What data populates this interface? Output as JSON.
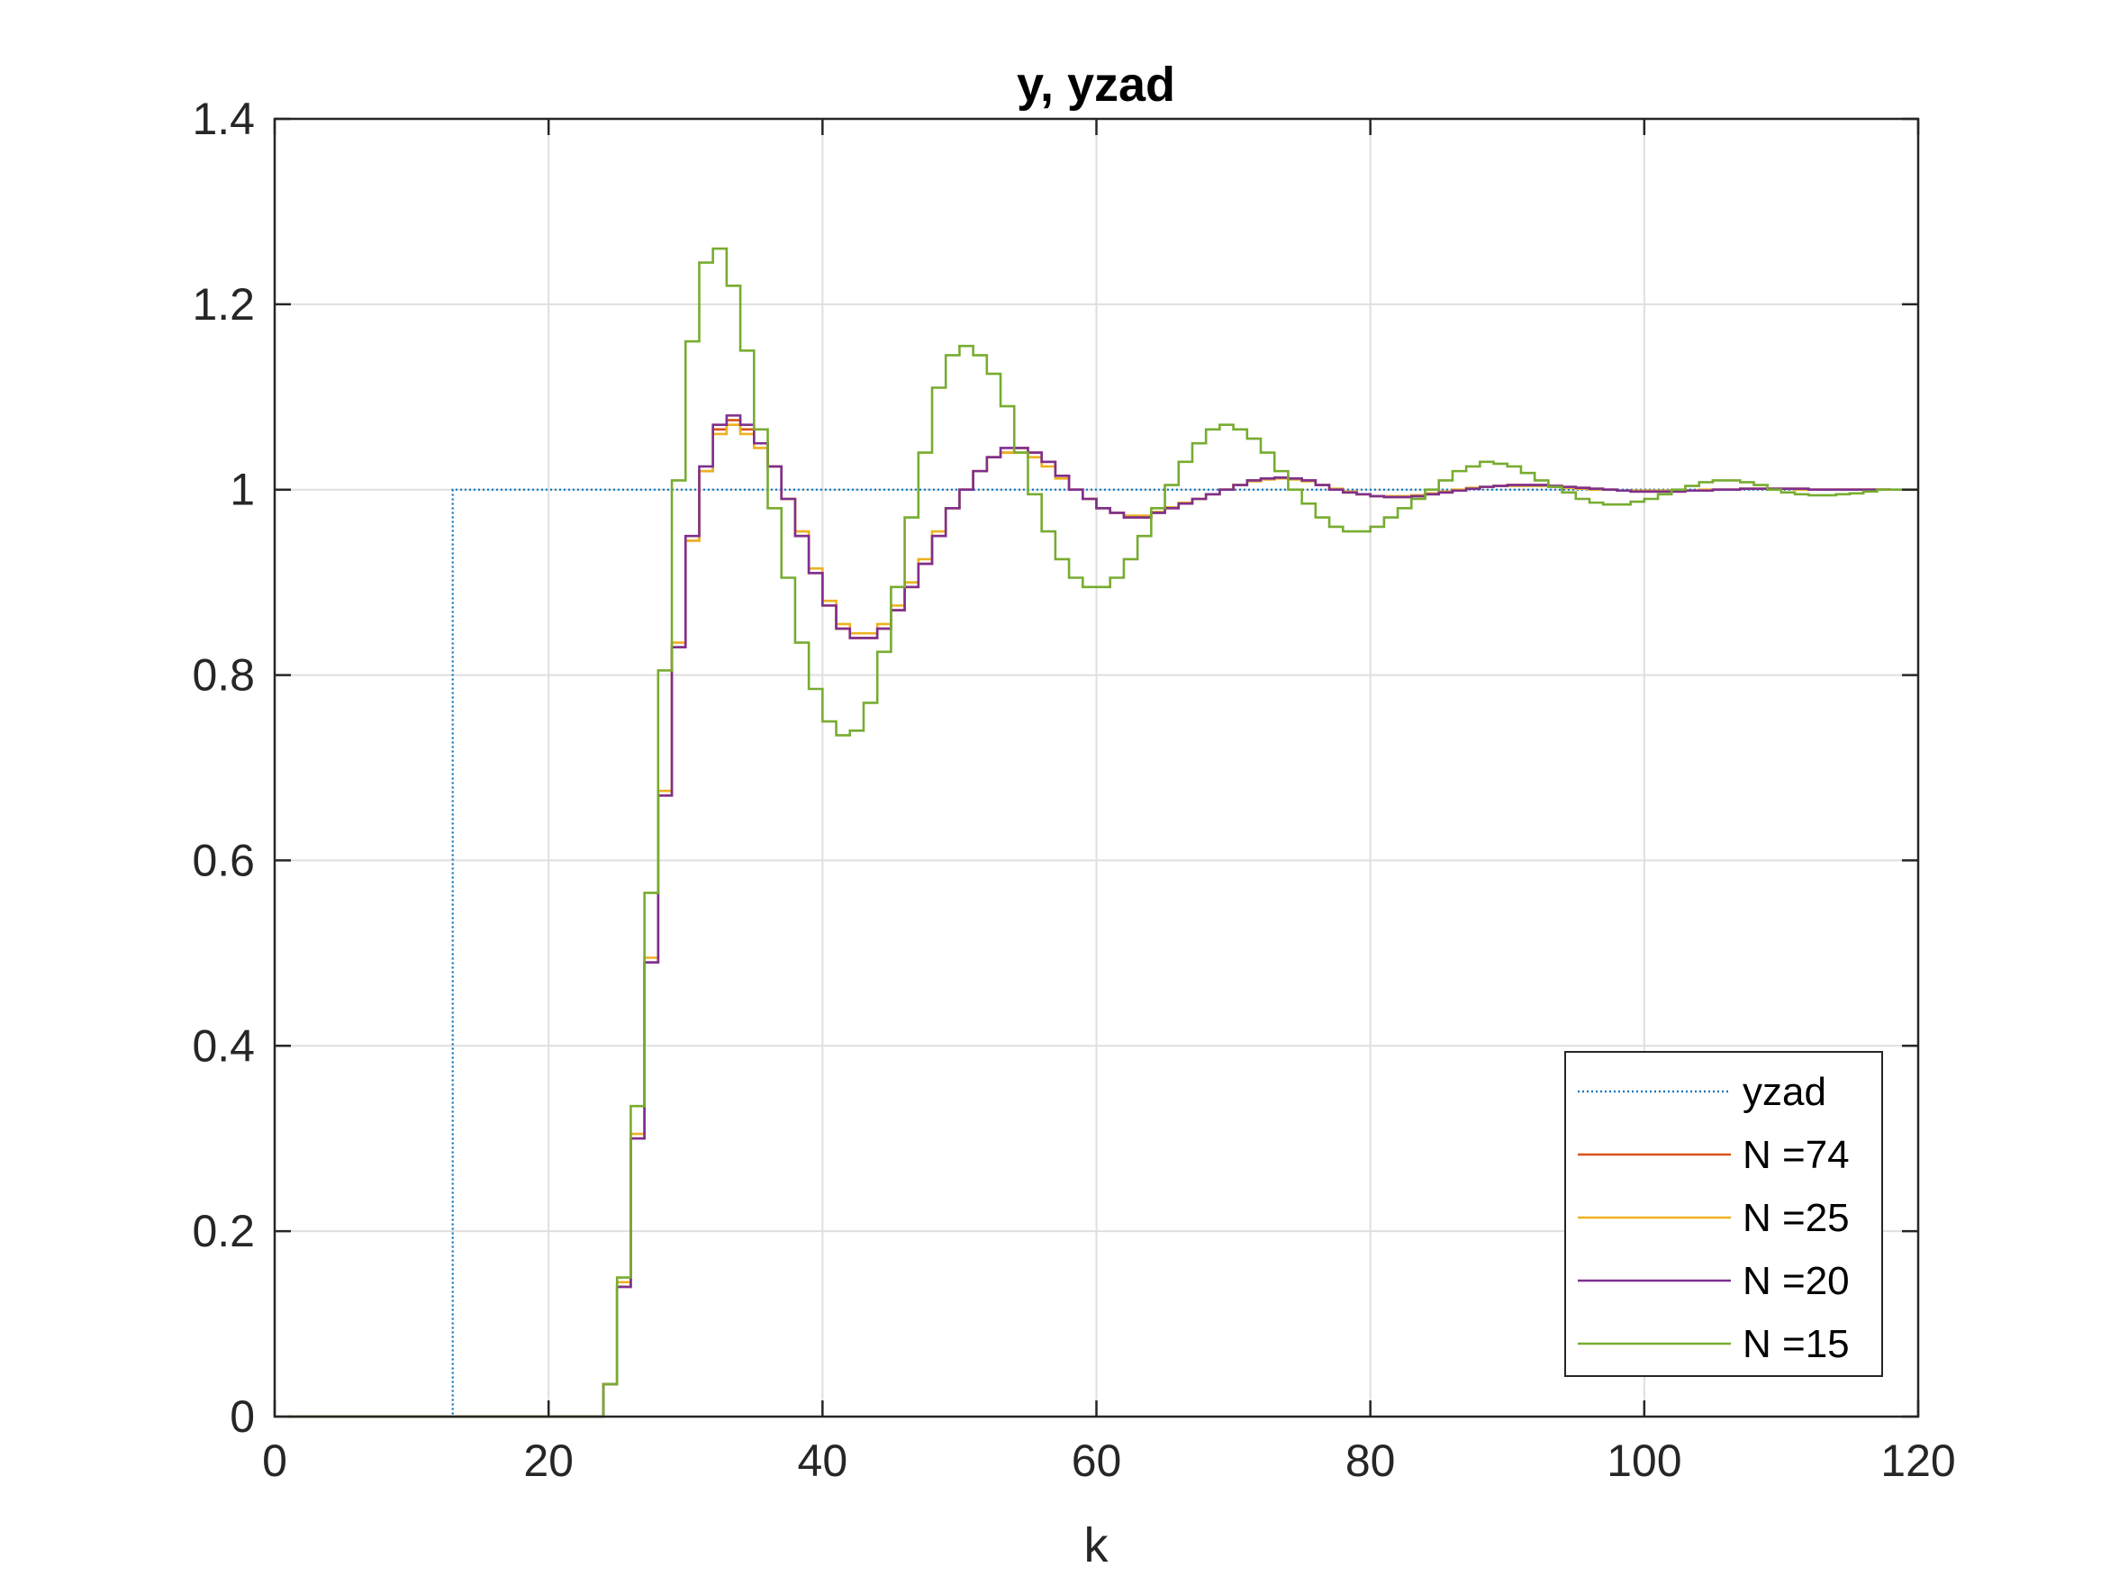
{
  "chart_data": {
    "type": "line",
    "title": "y, yzad",
    "xlabel": "k",
    "ylabel": "",
    "xlim": [
      0,
      120
    ],
    "ylim": [
      0,
      1.4
    ],
    "xticks": [
      "0",
      "20",
      "40",
      "60",
      "80",
      "100",
      "120"
    ],
    "yticks": [
      "0",
      "0.2",
      "0.4",
      "0.6",
      "0.8",
      "1",
      "1.2",
      "1.4"
    ],
    "grid": true,
    "step_plot": true,
    "legend_position": "bottom-right",
    "colors": {
      "axes": "#262626",
      "grid": "#dfdfdf",
      "yzad": "#0072bd",
      "n74": "#d95319",
      "n25": "#edb120",
      "n20": "#7e2f8e",
      "n15": "#77ac30"
    },
    "series": [
      {
        "name": "yzad",
        "color": "#0072bd",
        "style": "dotted",
        "x": [
          1,
          13,
          120
        ],
        "values": [
          0,
          1,
          1
        ]
      },
      {
        "name": "N =74",
        "color": "#d95319",
        "style": "solid",
        "x_start": 1,
        "values": [
          0,
          0,
          0,
          0,
          0,
          0,
          0,
          0,
          0,
          0,
          0,
          0,
          0,
          0,
          0,
          0,
          0,
          0,
          0,
          0,
          0,
          0,
          0,
          0.035,
          0.14,
          0.3,
          0.49,
          0.67,
          0.83,
          0.945,
          1.02,
          1.065,
          1.075,
          1.065,
          1.05,
          1.025,
          0.99,
          0.95,
          0.91,
          0.875,
          0.85,
          0.84,
          0.84,
          0.85,
          0.87,
          0.895,
          0.92,
          0.95,
          0.98,
          1.0,
          1.02,
          1.035,
          1.04,
          1.045,
          1.04,
          1.03,
          1.015,
          1.0,
          0.99,
          0.98,
          0.975,
          0.97,
          0.97,
          0.975,
          0.98,
          0.985,
          0.99,
          0.995,
          1.0,
          1.005,
          1.01,
          1.012,
          1.013,
          1.012,
          1.01,
          1.005,
          1.0,
          0.997,
          0.995,
          0.993,
          0.992,
          0.992,
          0.993,
          0.995,
          0.997,
          0.999,
          1.001,
          1.003,
          1.004,
          1.005,
          1.005,
          1.005,
          1.004,
          1.003,
          1.002,
          1.001,
          1.0,
          0.999,
          0.998,
          0.998,
          0.998,
          0.998,
          0.999,
          0.999,
          1.0,
          1.0,
          1.001,
          1.001,
          1.001,
          1.001,
          1.001,
          1.0,
          1.0,
          1.0,
          1.0,
          1.0,
          1.0,
          1.0
        ]
      },
      {
        "name": "N =25",
        "color": "#edb120",
        "style": "solid",
        "x_start": 1,
        "values": [
          0,
          0,
          0,
          0,
          0,
          0,
          0,
          0,
          0,
          0,
          0,
          0,
          0,
          0,
          0,
          0,
          0,
          0,
          0,
          0,
          0,
          0,
          0,
          0.035,
          0.145,
          0.305,
          0.495,
          0.675,
          0.835,
          0.945,
          1.02,
          1.06,
          1.07,
          1.06,
          1.045,
          1.025,
          0.99,
          0.955,
          0.915,
          0.88,
          0.855,
          0.845,
          0.845,
          0.855,
          0.875,
          0.9,
          0.925,
          0.955,
          0.98,
          1.0,
          1.02,
          1.035,
          1.04,
          1.04,
          1.035,
          1.025,
          1.012,
          1.0,
          0.99,
          0.98,
          0.975,
          0.972,
          0.972,
          0.976,
          0.981,
          0.986,
          0.99,
          0.995,
          1.0,
          1.005,
          1.009,
          1.011,
          1.012,
          1.011,
          1.009,
          1.005,
          1.001,
          0.998,
          0.995,
          0.993,
          0.993,
          0.993,
          0.994,
          0.996,
          0.998,
          1.0,
          1.002,
          1.003,
          1.004,
          1.004,
          1.004,
          1.004,
          1.003,
          1.002,
          1.001,
          1.0,
          1.0,
          0.999,
          0.999,
          0.999,
          0.999,
          0.999,
          0.999,
          1.0,
          1.0,
          1.0,
          1.001,
          1.001,
          1.001,
          1.001,
          1.0,
          1.0,
          1.0,
          1.0,
          1.0,
          1.0,
          1.0,
          1.0
        ]
      },
      {
        "name": "N =20",
        "color": "#7e2f8e",
        "style": "solid",
        "x_start": 1,
        "values": [
          0,
          0,
          0,
          0,
          0,
          0,
          0,
          0,
          0,
          0,
          0,
          0,
          0,
          0,
          0,
          0,
          0,
          0,
          0,
          0,
          0,
          0,
          0,
          0.035,
          0.14,
          0.3,
          0.49,
          0.67,
          0.83,
          0.95,
          1.025,
          1.07,
          1.08,
          1.07,
          1.05,
          1.025,
          0.99,
          0.95,
          0.91,
          0.875,
          0.85,
          0.84,
          0.84,
          0.85,
          0.87,
          0.895,
          0.92,
          0.95,
          0.98,
          1.0,
          1.02,
          1.035,
          1.045,
          1.045,
          1.04,
          1.03,
          1.015,
          1.0,
          0.99,
          0.98,
          0.975,
          0.97,
          0.97,
          0.975,
          0.98,
          0.985,
          0.99,
          0.995,
          1.0,
          1.005,
          1.01,
          1.012,
          1.013,
          1.012,
          1.01,
          1.005,
          1.0,
          0.997,
          0.995,
          0.993,
          0.992,
          0.992,
          0.993,
          0.995,
          0.997,
          0.999,
          1.001,
          1.003,
          1.004,
          1.005,
          1.005,
          1.005,
          1.004,
          1.003,
          1.002,
          1.001,
          1.0,
          0.999,
          0.998,
          0.998,
          0.998,
          0.998,
          0.999,
          0.999,
          1.0,
          1.0,
          1.001,
          1.001,
          1.001,
          1.001,
          1.001,
          1.0,
          1.0,
          1.0,
          1.0,
          1.0,
          1.0,
          1.0
        ]
      },
      {
        "name": "N =15",
        "color": "#77ac30",
        "style": "solid",
        "x_start": 1,
        "values": [
          0,
          0,
          0,
          0,
          0,
          0,
          0,
          0,
          0,
          0,
          0,
          0,
          0,
          0,
          0,
          0,
          0,
          0,
          0,
          0,
          0,
          0,
          0,
          0.035,
          0.15,
          0.335,
          0.565,
          0.805,
          1.01,
          1.16,
          1.245,
          1.26,
          1.22,
          1.15,
          1.065,
          0.98,
          0.905,
          0.835,
          0.785,
          0.75,
          0.735,
          0.74,
          0.77,
          0.825,
          0.895,
          0.97,
          1.04,
          1.11,
          1.145,
          1.155,
          1.145,
          1.125,
          1.09,
          1.04,
          0.995,
          0.955,
          0.925,
          0.905,
          0.895,
          0.895,
          0.905,
          0.925,
          0.95,
          0.98,
          1.005,
          1.03,
          1.05,
          1.065,
          1.07,
          1.065,
          1.055,
          1.04,
          1.02,
          1.0,
          0.985,
          0.97,
          0.96,
          0.955,
          0.955,
          0.96,
          0.97,
          0.98,
          0.99,
          1.0,
          1.01,
          1.02,
          1.025,
          1.03,
          1.028,
          1.025,
          1.018,
          1.01,
          1.003,
          0.997,
          0.99,
          0.986,
          0.984,
          0.984,
          0.987,
          0.99,
          0.995,
          1.0,
          1.004,
          1.008,
          1.01,
          1.01,
          1.008,
          1.005,
          1.0,
          0.997,
          0.995,
          0.994,
          0.994,
          0.995,
          0.996,
          0.998,
          1.0,
          1.0,
          1.0,
          1.0
        ]
      }
    ]
  }
}
